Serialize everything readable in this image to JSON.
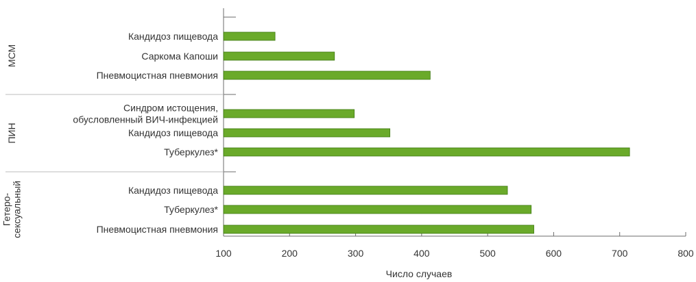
{
  "chart_data": {
    "type": "bar",
    "orientation": "horizontal",
    "xlabel": "Число случаев",
    "xlim": [
      100,
      800
    ],
    "xticks": [
      "100",
      "200",
      "300",
      "400",
      "500",
      "600",
      "700",
      "800"
    ],
    "bar_color": "#6aaa2a",
    "bar_edge_color": "#3f7a12",
    "grid": false,
    "groups": [
      {
        "name": [
          "МСМ"
        ],
        "bars": [
          {
            "label": [
              "Кандидоз пищевода"
            ],
            "value": 178
          },
          {
            "label": [
              "Саркома Капоши"
            ],
            "value": 268
          },
          {
            "label": [
              "Пневмоцистная пневмония"
            ],
            "value": 413
          }
        ]
      },
      {
        "name": [
          "ПИН"
        ],
        "bars": [
          {
            "label": [
              "Синдром истощения,",
              "обусловленный ВИЧ-инфекцией"
            ],
            "value": 298
          },
          {
            "label": [
              "Кандидоз пищевода"
            ],
            "value": 352
          },
          {
            "label": [
              "Туберкулез*"
            ],
            "value": 715
          }
        ]
      },
      {
        "name": [
          "Гетеро-",
          "сексуальный"
        ],
        "bars": [
          {
            "label": [
              "Кандидоз пищевода"
            ],
            "value": 530
          },
          {
            "label": [
              "Туберкулез*"
            ],
            "value": 566
          },
          {
            "label": [
              "Пневмоцистная пневмония"
            ],
            "value": 570
          }
        ]
      }
    ]
  }
}
